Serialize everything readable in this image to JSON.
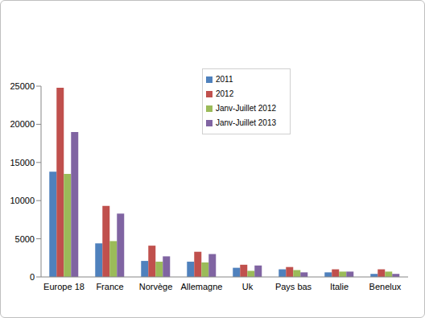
{
  "chart_data": {
    "type": "bar",
    "categories": [
      "Europe 18",
      "France",
      "Norvège",
      "Allemagne",
      "Uk",
      "Pays bas",
      "Italie",
      "Benelux"
    ],
    "series": [
      {
        "name": "2011",
        "color": "#4f81bd",
        "values": [
          13800,
          4400,
          2100,
          2000,
          1200,
          1000,
          600,
          400
        ]
      },
      {
        "name": "2012",
        "color": "#c0504d",
        "values": [
          24800,
          9300,
          4100,
          3300,
          1600,
          1300,
          1000,
          1000
        ]
      },
      {
        "name": "Janv-Juillet 2012",
        "color": "#9bbb59",
        "values": [
          13500,
          4700,
          2000,
          1900,
          800,
          900,
          700,
          700
        ]
      },
      {
        "name": "Janv-Juillet 2013",
        "color": "#8064a2",
        "values": [
          19000,
          8300,
          2700,
          3000,
          1500,
          600,
          700,
          400
        ]
      }
    ],
    "ylim": [
      0,
      25000
    ],
    "yticks": [
      0,
      5000,
      10000,
      15000,
      20000,
      25000
    ],
    "grid": false,
    "legend": "top"
  }
}
